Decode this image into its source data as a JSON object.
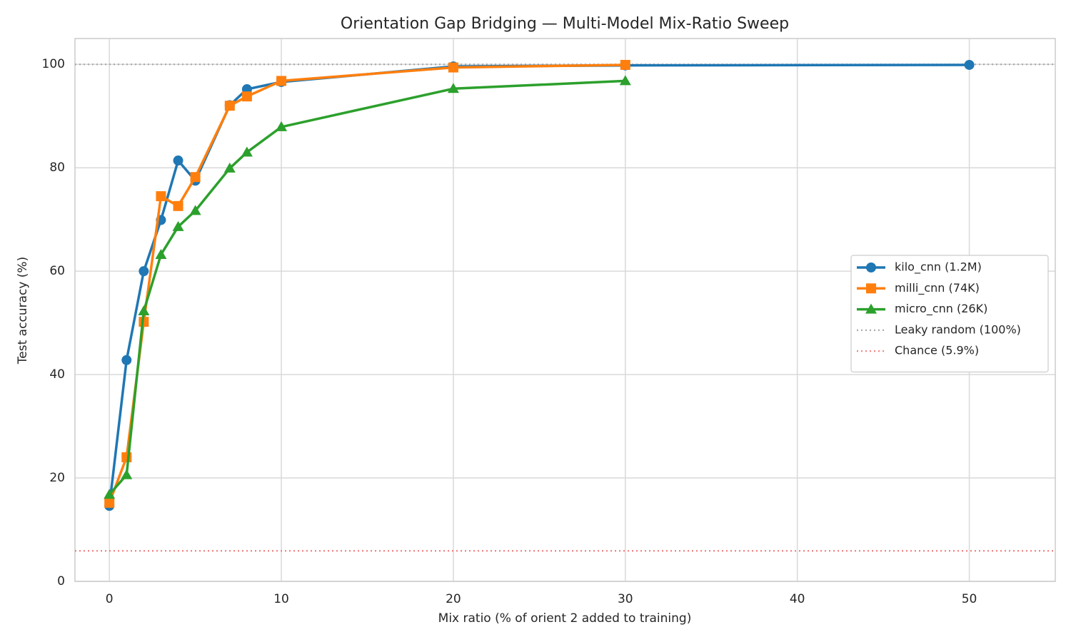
{
  "chart_data": {
    "type": "line",
    "title": "Orientation Gap Bridging — Multi-Model Mix-Ratio Sweep",
    "x_label": "Mix ratio (% of orient 2 added to training)",
    "y_label": "Test accuracy (%)",
    "xlim": [
      -2,
      55
    ],
    "xticks": [
      0,
      10,
      20,
      30,
      40,
      50
    ],
    "ylim": [
      0,
      105
    ],
    "yticks": [
      0,
      20,
      40,
      60,
      80,
      100
    ],
    "grid": true,
    "legend": "right",
    "series": [
      {
        "name": "kilo_cnn (1.2M)",
        "color": "#1f77b4",
        "marker": "circle",
        "x": [
          0,
          1,
          2,
          3,
          4,
          5,
          7,
          8,
          10,
          20,
          30,
          50
        ],
        "values": [
          14.6,
          42.8,
          60,
          69.9,
          81.4,
          77.5,
          92.1,
          95.2,
          96.6,
          99.6,
          99.8,
          99.9
        ]
      },
      {
        "name": "milli_cnn (74K)",
        "color": "#ff7f0e",
        "marker": "square",
        "x": [
          0,
          1,
          2,
          3,
          4,
          5,
          7,
          8,
          10,
          20,
          30
        ],
        "values": [
          15.2,
          24,
          50.2,
          74.5,
          72.6,
          78.2,
          92,
          93.8,
          96.8,
          99.4,
          99.9
        ]
      },
      {
        "name": "micro_cnn (26K)",
        "color": "#2ca02c",
        "marker": "triangle",
        "x": [
          0,
          1,
          2,
          3,
          4,
          5,
          7,
          8,
          10,
          20,
          30
        ],
        "values": [
          16.8,
          20.6,
          52.3,
          63.2,
          68.6,
          71.7,
          79.9,
          83,
          87.9,
          95.3,
          96.8
        ]
      }
    ],
    "hlines": [
      {
        "label": "Leaky random (100%)",
        "value": 100,
        "color": "#aaaaaa"
      },
      {
        "label": "Chance (5.9%)",
        "value": 5.9,
        "color": "#f08080"
      }
    ]
  }
}
